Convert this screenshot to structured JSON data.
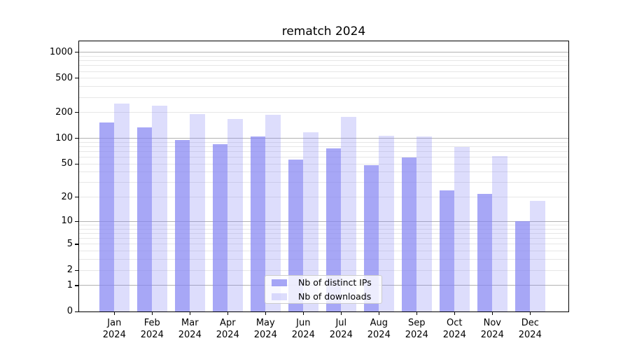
{
  "title": "rematch 2024",
  "chart_data": {
    "type": "bar",
    "title": "rematch 2024",
    "categories": [
      "Jan 2024",
      "Feb 2024",
      "Mar 2024",
      "Apr 2024",
      "May 2024",
      "Jun 2024",
      "Jul 2024",
      "Aug 2024",
      "Sep 2024",
      "Oct 2024",
      "Nov 2024",
      "Dec 2024"
    ],
    "series": [
      {
        "name": "Nb of distinct IPs",
        "values": [
          152,
          133,
          95,
          85,
          105,
          56,
          76,
          48,
          60,
          24,
          22,
          10
        ],
        "fill": "rgba(133,133,243,0.72)",
        "approx_hex": "#a7a7f6"
      },
      {
        "name": "Nb of downloads",
        "values": [
          256,
          241,
          190,
          167,
          189,
          117,
          179,
          107,
          105,
          79,
          62,
          18
        ],
        "fill": "rgba(133,133,243,0.28)",
        "approx_hex": "#dcdcfb"
      }
    ],
    "xlabel": "",
    "ylabel": "",
    "yscale": "log(1+y)",
    "y_ticks": [
      1000,
      500,
      200,
      100,
      50,
      20,
      10,
      5,
      2,
      1,
      0
    ],
    "y_major_grid_values": [
      1000,
      100,
      10,
      1
    ],
    "ylim": [
      0,
      1320
    ],
    "grid": true,
    "legend": {
      "position": "lower center",
      "labels": [
        "Nb of distinct IPs",
        "Nb of downloads"
      ]
    },
    "colors": {
      "grid_minor": "#e7e7e7",
      "grid_major": "#b2b2b2",
      "spine": "#000000",
      "text": "#000000",
      "legend_border": "#cccccc",
      "legend_bg": "rgba(255,255,255,0.8)"
    }
  }
}
